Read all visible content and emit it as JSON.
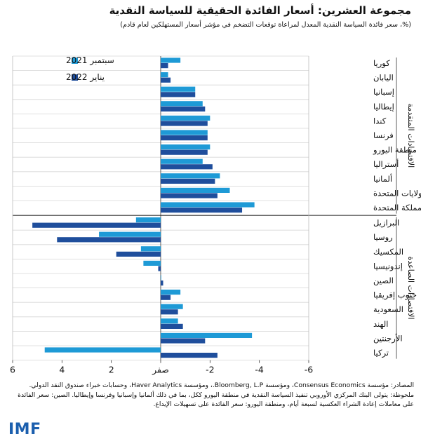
{
  "header": {
    "title": "مجموعة العشرين: أسعار الفائدة الحقيقية للسياسة النقدية",
    "subtitle": "(%، سعر فائدة السياسة النقدية المعدل لمراعاة توقعات التضخم في مؤشر أسعار المستهلكين لعام قادم)"
  },
  "chart_data": {
    "type": "bar",
    "orientation": "horizontal",
    "x_reversed": true,
    "xlim": [
      -6,
      6
    ],
    "x_ticks": [
      6,
      4,
      2,
      0,
      -2,
      -4,
      -6
    ],
    "x_tick_labels": [
      "6",
      "4",
      "2",
      "صفر",
      "-2",
      "-4",
      "-6"
    ],
    "colors": {
      "sep2021": "#1e9ad6",
      "jan2022": "#1f4e9c"
    },
    "series": [
      {
        "key": "sep2021",
        "name": "سبتمبر 2021",
        "color": "#1e9ad6"
      },
      {
        "key": "jan2022",
        "name": "يناير 2022",
        "color": "#1f4e9c"
      }
    ],
    "groups": [
      {
        "label": "الاقتصادات المتقدمة",
        "categories": [
          "كوريا",
          "اليابان",
          "إسبانيا",
          "إيطاليا",
          "كندا",
          "فرنسا",
          "منطقة اليورو",
          "أستراليا",
          "ألمانيا",
          "الولايات المتحدة",
          "المملكة المتحدة"
        ],
        "sep2021": [
          -0.8,
          -0.3,
          -1.4,
          -1.7,
          -2.0,
          -1.9,
          -2.0,
          -1.7,
          -2.4,
          -2.8,
          -3.8
        ],
        "jan2022": [
          -0.3,
          -0.4,
          -1.4,
          -1.8,
          -1.9,
          -1.9,
          -1.9,
          -2.1,
          -2.2,
          -2.3,
          -3.3
        ]
      },
      {
        "label": "الاقتصادات الصاعدة",
        "categories": [
          "البرازيل",
          "روسيا",
          "المكسيك",
          "إندونيسيا",
          "الصين",
          "جنوب إفريقيا",
          "السعودية",
          "الهند",
          "الأرجنتين",
          "تركيا"
        ],
        "sep2021": [
          1.0,
          2.5,
          0.8,
          0.7,
          0.0,
          -0.8,
          -0.9,
          -0.7,
          -3.7,
          4.7
        ],
        "jan2022": [
          5.2,
          4.2,
          1.8,
          0.1,
          -0.1,
          -0.4,
          -0.7,
          -0.9,
          -1.8,
          -2.3
        ]
      }
    ]
  },
  "notes": {
    "sources": "المصادر: مؤسسة Consensus Economics، ومؤسسة Bloomberg, L.P.، ومؤسسة Haver Analytics، وحسابات خبراء صندوق النقد الدولي.",
    "note": "ملحوظة: يتولى البنك المركزي الأوروبي تنفيذ السياسة النقدية في منطقة اليورو ككل، بما في ذلك ألمانيا وإسبانيا وفرنسا وإيطاليا. الصين: سعر الفائدة على معاملات إعادة الشراء العكسية لسبعة أيام، ومنطقة اليورو: سعر الفائدة على تسهيلات الإيداع."
  },
  "brand": {
    "logo_text": "IMF"
  }
}
